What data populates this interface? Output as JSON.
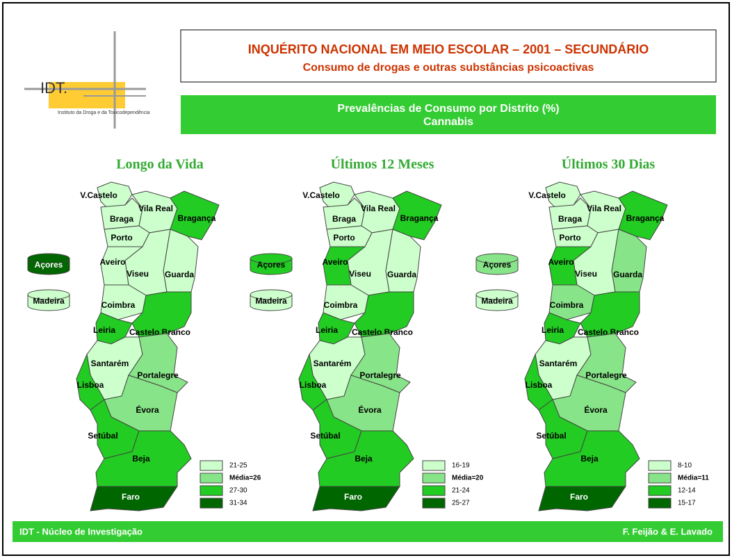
{
  "header": {
    "logo": "IDT.",
    "logo_caption": "Instituto da Droga e da Toxicodependência",
    "title": "INQUÉRITO NACIONAL EM MEIO ESCOLAR – 2001 – SECUNDÁRIO",
    "subtitle": "Consumo de drogas e outras substâncias psicoactivas",
    "banner_line1": "Prevalências de Consumo por Distrito (%)",
    "banner_line2": "Cannabis"
  },
  "maps": [
    {
      "title": "Longo da Vida",
      "legend": [
        {
          "label": "21-25",
          "color": "#ccffcc"
        },
        {
          "label": "Média=26",
          "color": "#88e488"
        },
        {
          "label": "27-30",
          "color": "#22cc22"
        },
        {
          "label": "31-34",
          "color": "#006600"
        }
      ],
      "districts": [
        {
          "name": "V.Castelo",
          "class": 0
        },
        {
          "name": "Braga",
          "class": 0
        },
        {
          "name": "Vila Real",
          "class": 0
        },
        {
          "name": "Bragança",
          "class": 2
        },
        {
          "name": "Porto",
          "class": 0
        },
        {
          "name": "Aveiro",
          "class": 0
        },
        {
          "name": "Viseu",
          "class": 0
        },
        {
          "name": "Guarda",
          "class": 0
        },
        {
          "name": "Coimbra",
          "class": 0
        },
        {
          "name": "Castelo Branco",
          "class": 2
        },
        {
          "name": "Leiria",
          "class": 2
        },
        {
          "name": "Santarém",
          "class": 0
        },
        {
          "name": "Portalegre",
          "class": 1
        },
        {
          "name": "Lisboa",
          "class": 2
        },
        {
          "name": "Évora",
          "class": 1
        },
        {
          "name": "Setúbal",
          "class": 2
        },
        {
          "name": "Beja",
          "class": 2
        },
        {
          "name": "Faro",
          "class": 3
        },
        {
          "name": "Açores",
          "class": 3
        },
        {
          "name": "Madeira",
          "class": 0
        }
      ]
    },
    {
      "title": "Últimos 12 Meses",
      "legend": [
        {
          "label": "16-19",
          "color": "#ccffcc"
        },
        {
          "label": "Média=20",
          "color": "#88e488"
        },
        {
          "label": "21-24",
          "color": "#22cc22"
        },
        {
          "label": "25-27",
          "color": "#006600"
        }
      ],
      "districts": [
        {
          "name": "V.Castelo",
          "class": 0
        },
        {
          "name": "Braga",
          "class": 0
        },
        {
          "name": "Vila Real",
          "class": 0
        },
        {
          "name": "Bragança",
          "class": 2
        },
        {
          "name": "Porto",
          "class": 0
        },
        {
          "name": "Aveiro",
          "class": 2
        },
        {
          "name": "Viseu",
          "class": 0
        },
        {
          "name": "Guarda",
          "class": 0
        },
        {
          "name": "Coimbra",
          "class": 0
        },
        {
          "name": "Castelo Branco",
          "class": 2
        },
        {
          "name": "Leiria",
          "class": 2
        },
        {
          "name": "Santarém",
          "class": 0
        },
        {
          "name": "Portalegre",
          "class": 1
        },
        {
          "name": "Lisboa",
          "class": 2
        },
        {
          "name": "Évora",
          "class": 1
        },
        {
          "name": "Setúbal",
          "class": 2
        },
        {
          "name": "Beja",
          "class": 2
        },
        {
          "name": "Faro",
          "class": 3
        },
        {
          "name": "Açores",
          "class": 2
        },
        {
          "name": "Madeira",
          "class": 0
        }
      ]
    },
    {
      "title": "Últimos 30 Dias",
      "legend": [
        {
          "label": "8-10",
          "color": "#ccffcc"
        },
        {
          "label": "Média=11",
          "color": "#88e488"
        },
        {
          "label": "12-14",
          "color": "#22cc22"
        },
        {
          "label": "15-17",
          "color": "#006600"
        }
      ],
      "districts": [
        {
          "name": "V.Castelo",
          "class": 0
        },
        {
          "name": "Braga",
          "class": 0
        },
        {
          "name": "Vila Real",
          "class": 0
        },
        {
          "name": "Bragança",
          "class": 2
        },
        {
          "name": "Porto",
          "class": 0
        },
        {
          "name": "Aveiro",
          "class": 2
        },
        {
          "name": "Viseu",
          "class": 0
        },
        {
          "name": "Guarda",
          "class": 1
        },
        {
          "name": "Coimbra",
          "class": 1
        },
        {
          "name": "Castelo Branco",
          "class": 2
        },
        {
          "name": "Leiria",
          "class": 2
        },
        {
          "name": "Santarém",
          "class": 0
        },
        {
          "name": "Portalegre",
          "class": 1
        },
        {
          "name": "Lisboa",
          "class": 2
        },
        {
          "name": "Évora",
          "class": 1
        },
        {
          "name": "Setúbal",
          "class": 2
        },
        {
          "name": "Beja",
          "class": 2
        },
        {
          "name": "Faro",
          "class": 3
        },
        {
          "name": "Açores",
          "class": 1
        },
        {
          "name": "Madeira",
          "class": 0
        }
      ]
    }
  ],
  "footer": {
    "left": "IDT - Núcleo de Investigação",
    "right": "F. Feijão & E. Lavado"
  }
}
